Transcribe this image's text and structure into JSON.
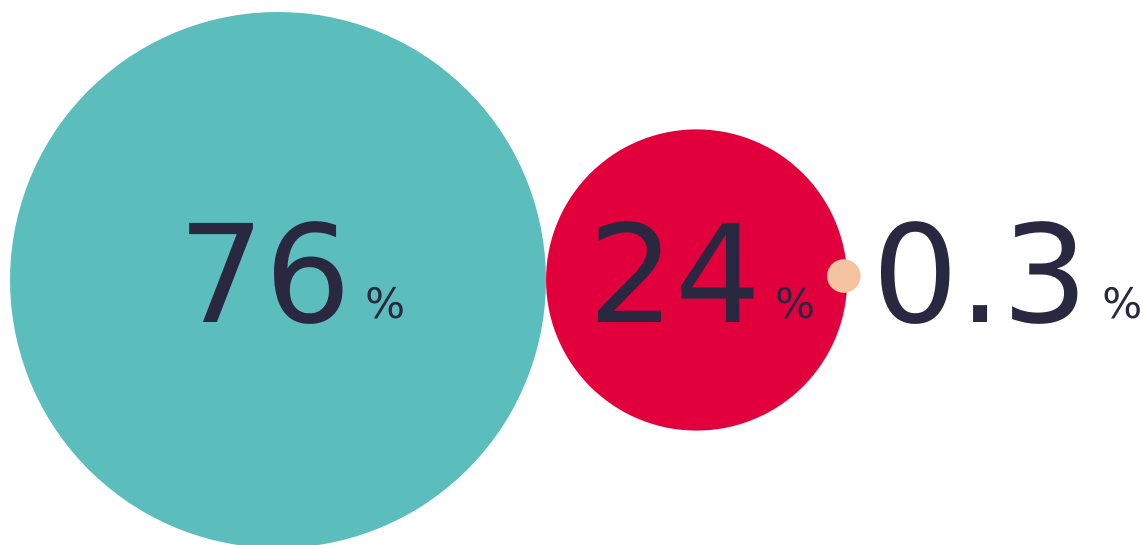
{
  "chart_data": {
    "type": "bubble",
    "title": "",
    "unit": "%",
    "text_color": "#2a2740",
    "series": [
      {
        "value": 76,
        "label": "76",
        "color": "#5bbdbc"
      },
      {
        "value": 24,
        "label": "24",
        "color": "#e2003c"
      },
      {
        "value": 0.3,
        "label": "0.3",
        "color": "#f5c3a0"
      }
    ]
  }
}
